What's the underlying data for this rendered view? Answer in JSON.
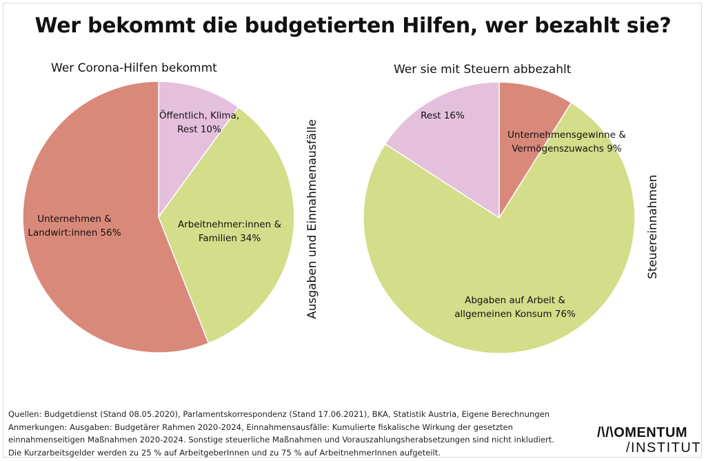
{
  "title": "Wer bekommt die budgetierten Hilfen, wer bezahlt sie?",
  "colors": {
    "salmon": "#d9897a",
    "green": "#d3dd8a",
    "pink": "#e4c0dd",
    "stroke": "#ffffff"
  },
  "chart_data": [
    {
      "type": "pie",
      "title": "Wer Corona-Hilfen bekommt",
      "side_label": "Ausgaben und Einnahmenausfälle",
      "slices": [
        {
          "label_lines": [
            "Öffentlich, Klima,",
            "Rest 10%"
          ],
          "value": 10,
          "color": "#e4c0dd"
        },
        {
          "label_lines": [
            "Arbeitnehmer:innen &",
            "Familien 34%"
          ],
          "value": 34,
          "color": "#d3dd8a"
        },
        {
          "label_lines": [
            "Unternehmen &",
            "Landwirt:innen 56%"
          ],
          "value": 56,
          "color": "#d9897a"
        }
      ]
    },
    {
      "type": "pie",
      "title": "Wer sie mit Steuern abbezahlt",
      "side_label": "Steuereinnahmen",
      "slices": [
        {
          "label_lines": [
            "Unternehmensgewinne &",
            "Vermögenszuwachs 9%"
          ],
          "value": 9,
          "color": "#d9897a"
        },
        {
          "label_lines": [
            "Abgaben auf Arbeit &",
            "allgemeinen Konsum 76%"
          ],
          "value": 76,
          "color": "#d3dd8a"
        },
        {
          "label_lines": [
            "Rest 16%"
          ],
          "value": 16,
          "color": "#e4c0dd"
        }
      ]
    }
  ],
  "footer": {
    "sources": "Quellen: Budgetdienst (Stand 08.05.2020), Parlamentskorrespondenz (Stand 17.06.2021), BKA, Statistik Austria, Eigene Berechnungen",
    "notes_1": "Anmerkungen: Ausgaben: Budgetärer Rahmen 2020-2024, Einnahmensausfälle:  Kumulierte fiskalische Wirkung der gesetzten",
    "notes_2": "einnahmenseitigen Maßnahmen 2020-2024. Sonstige steuerliche Maßnahmen und Vorauszahlungsherabsetzungen sind nicht inkludiert.",
    "notes_3": "Die Kurzarbeitsgelder werden zu 25 % auf ArbeitgeberInnen und zu 75 % auf ArbeitnehmerInnen aufgeteilt."
  },
  "logo": {
    "line1": "/\\/\\OMENTUM",
    "line2": "/INSTITUT"
  }
}
